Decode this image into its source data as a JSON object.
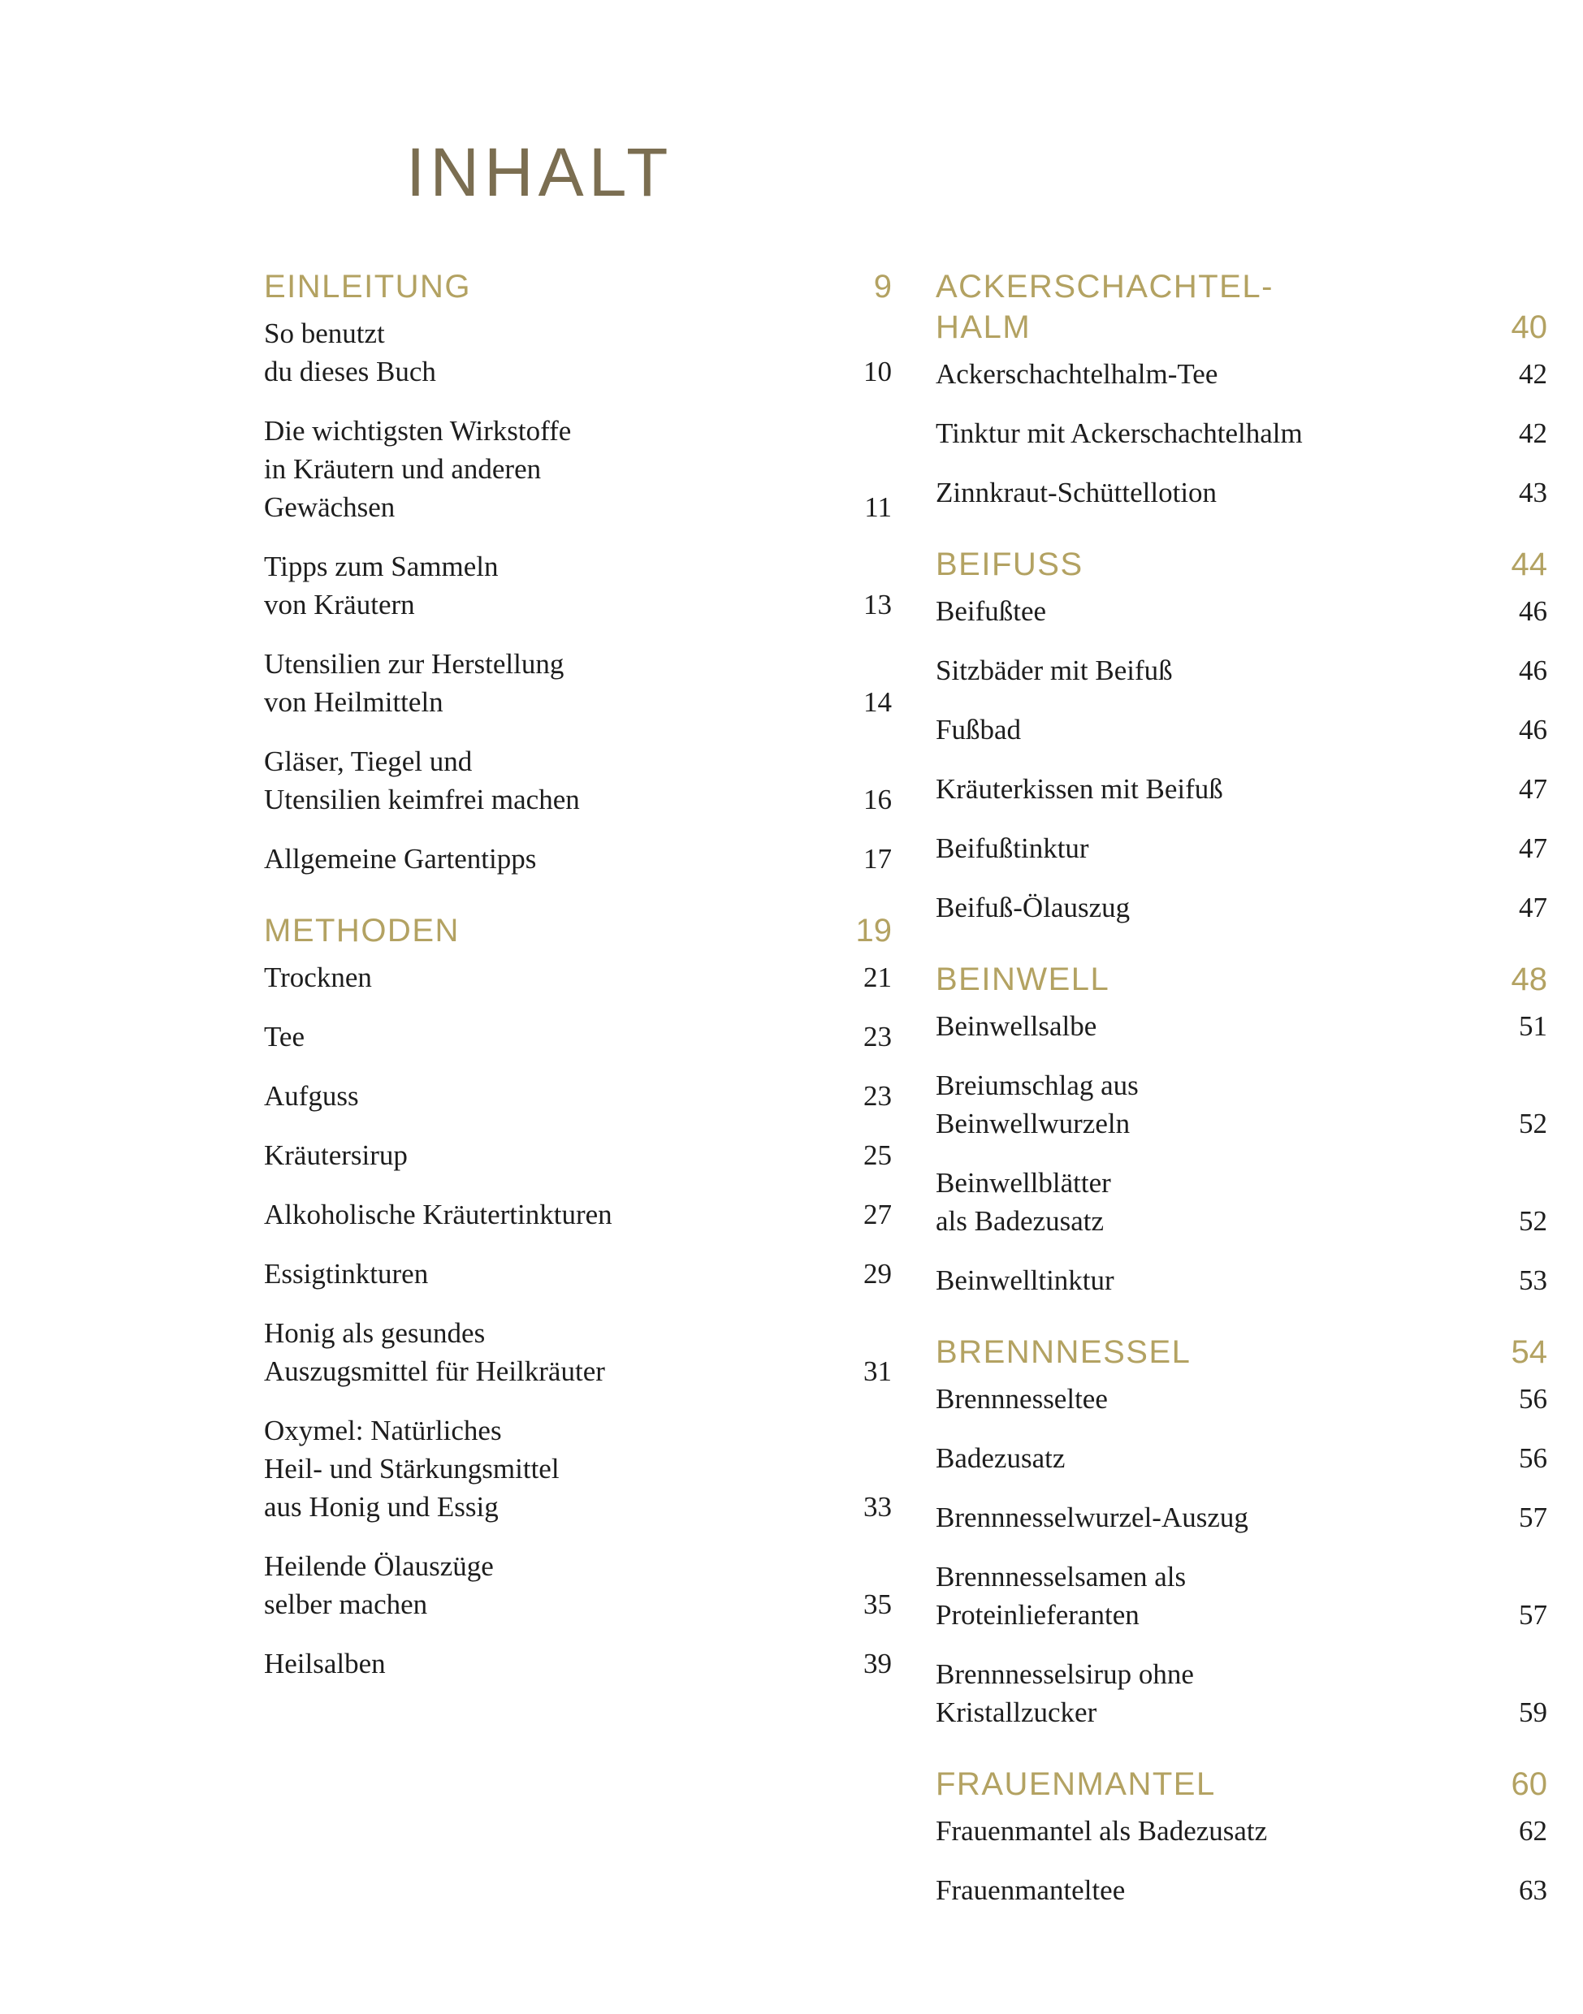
{
  "page": {
    "title": "INHALT",
    "colors": {
      "accent_gold": "#b3a262",
      "title_brown": "#7b6e51",
      "text": "#1d1d1d",
      "background": "#ffffff"
    }
  },
  "columns": [
    {
      "side": "left",
      "sections": [
        {
          "header": {
            "label": "EINLEITUNG",
            "page": "9"
          },
          "entries": [
            {
              "label": "So benutzt\ndu dieses Buch",
              "page": "10"
            },
            {
              "label": "Die wichtigsten Wirkstoffe\nin Kräutern und anderen\nGewächsen",
              "page": "11"
            },
            {
              "label": "Tipps zum Sammeln\nvon Kräutern",
              "page": "13"
            },
            {
              "label": "Utensilien zur Herstellung\nvon Heilmitteln",
              "page": "14"
            },
            {
              "label": "Gläser, Tiegel und\nUtensilien keimfrei machen",
              "page": "16"
            },
            {
              "label": "Allgemeine Gartentipps",
              "page": "17"
            }
          ]
        },
        {
          "header": {
            "label": "METHODEN",
            "page": "19"
          },
          "entries": [
            {
              "label": "Trocknen",
              "page": "21"
            },
            {
              "label": "Tee",
              "page": "23"
            },
            {
              "label": "Aufguss",
              "page": "23"
            },
            {
              "label": "Kräutersirup",
              "page": "25"
            },
            {
              "label": "Alkoholische Kräutertinkturen",
              "page": "27"
            },
            {
              "label": "Essigtinkturen",
              "page": "29"
            },
            {
              "label": "Honig als gesundes\nAuszugsmittel für Heilkräuter",
              "page": "31"
            },
            {
              "label": "Oxymel: Natürliches\nHeil- und Stärkungsmittel\naus Honig und Essig",
              "page": "33"
            },
            {
              "label": "Heilende Ölauszüge\nselber machen",
              "page": "35"
            },
            {
              "label": "Heilsalben",
              "page": "39"
            }
          ]
        }
      ]
    },
    {
      "side": "right",
      "sections": [
        {
          "header": {
            "label": "ACKERSCHACHTEL-\nHALM",
            "page": "40"
          },
          "entries": [
            {
              "label": "Ackerschachtelhalm-Tee",
              "page": "42"
            },
            {
              "label": "Tinktur mit Ackerschachtelhalm",
              "page": "42"
            },
            {
              "label": "Zinnkraut-Schüttellotion",
              "page": "43"
            }
          ]
        },
        {
          "header": {
            "label": "BEIFUSS",
            "page": "44"
          },
          "entries": [
            {
              "label": "Beifußtee",
              "page": "46"
            },
            {
              "label": "Sitzbäder mit Beifuß",
              "page": "46"
            },
            {
              "label": "Fußbad",
              "page": "46"
            },
            {
              "label": "Kräuterkissen mit Beifuß",
              "page": "47"
            },
            {
              "label": "Beifußtinktur",
              "page": "47"
            },
            {
              "label": "Beifuß-Ölauszug",
              "page": "47"
            }
          ]
        },
        {
          "header": {
            "label": "BEINWELL",
            "page": "48"
          },
          "entries": [
            {
              "label": "Beinwellsalbe",
              "page": "51"
            },
            {
              "label": "Breiumschlag aus\nBeinwellwurzeln",
              "page": "52"
            },
            {
              "label": "Beinwellblätter\nals Badezusatz",
              "page": "52"
            },
            {
              "label": "Beinwelltinktur",
              "page": "53"
            }
          ]
        },
        {
          "header": {
            "label": "BRENNNESSEL",
            "page": "54"
          },
          "entries": [
            {
              "label": "Brennnesseltee",
              "page": "56"
            },
            {
              "label": "Badezusatz",
              "page": "56"
            },
            {
              "label": "Brennnesselwurzel-Auszug",
              "page": "57"
            },
            {
              "label": "Brennnesselsamen als\nProteinlieferanten",
              "page": "57"
            },
            {
              "label": "Brennnesselsirup ohne\nKristallzucker",
              "page": "59"
            }
          ]
        },
        {
          "header": {
            "label": "FRAUENMANTEL",
            "page": "60"
          },
          "entries": [
            {
              "label": "Frauenmantel als Badezusatz",
              "page": "62"
            },
            {
              "label": "Frauenmanteltee",
              "page": "63"
            }
          ]
        }
      ]
    }
  ]
}
